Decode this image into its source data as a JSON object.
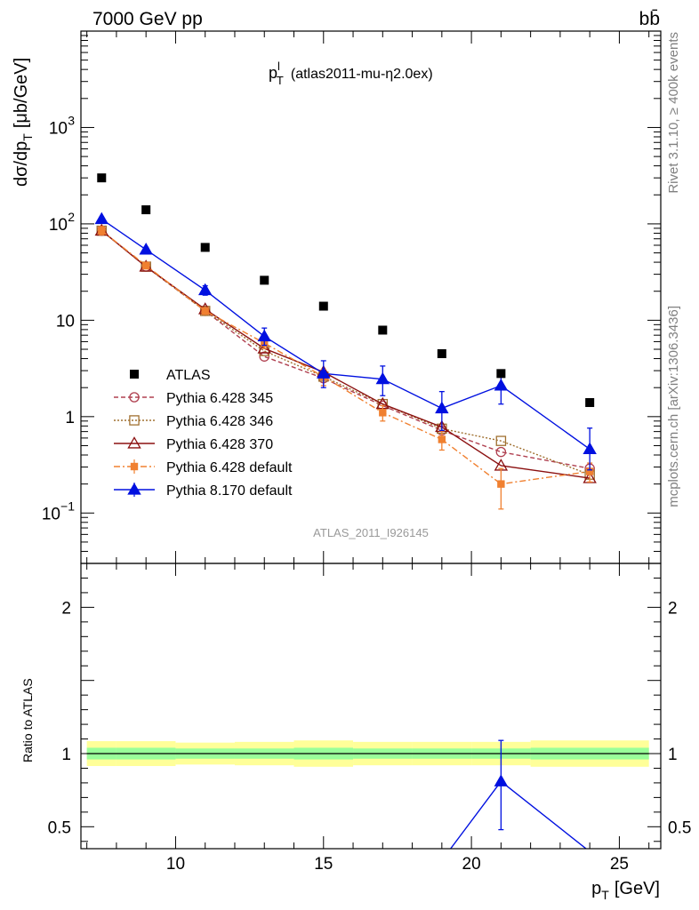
{
  "header": {
    "energy_label": "7000 GeV pp",
    "process_label": "bb̄",
    "rivet_label": "Rivet 3.1.10, ≥ 400k events",
    "mcplots_label": "mcplots.cern.ch [arXiv:1306.3436]"
  },
  "chart_data": {
    "type": "scatter",
    "title": "p",
    "title_sup": "l",
    "title_sub": "T",
    "title_extra": "(atlas2011-mu-η2.0ex)",
    "analysis_label": "ATLAS_2011_I926145",
    "ylabel_main": "dσ/dp",
    "ylabel_sub": "T",
    "ylabel_unit": "[μb/GeV]",
    "ylabel_ratio": "Ratio to ATLAS",
    "xlabel_main": "p",
    "xlabel_sub": "T",
    "xlabel_unit": "[GeV]",
    "xlim": [
      6.8,
      26.4
    ],
    "ylim_main": [
      0.03,
      10000
    ],
    "ylim_ratio": [
      0.35,
      2.3
    ],
    "y_scale": "log",
    "x_ticks": [
      {
        "value": 10,
        "label": "10"
      },
      {
        "value": 15,
        "label": "15"
      },
      {
        "value": 20,
        "label": "20"
      },
      {
        "value": 25,
        "label": "25"
      }
    ],
    "y_ticks_main": [
      {
        "value": 0.1,
        "base": "10",
        "exp": "−1"
      },
      {
        "value": 1,
        "base": "1",
        "exp": ""
      },
      {
        "value": 10,
        "base": "10",
        "exp": ""
      },
      {
        "value": 100,
        "base": "10",
        "exp": "2"
      },
      {
        "value": 1000,
        "base": "10",
        "exp": "3"
      }
    ],
    "y_ticks_ratio": [
      {
        "value": 0.5,
        "label": "0.5"
      },
      {
        "value": 1,
        "label": "1"
      },
      {
        "value": 2,
        "label": "2"
      }
    ],
    "legend_position": "middle-left",
    "data": {
      "name": "ATLAS",
      "color": "#000000",
      "x": [
        7.5,
        9,
        11,
        13,
        15,
        17,
        19,
        21,
        24
      ],
      "y": [
        300,
        140,
        57,
        26,
        14,
        7.9,
        4.5,
        2.8,
        1.4
      ],
      "bins": [
        [
          7,
          8
        ],
        [
          8,
          10
        ],
        [
          10,
          12
        ],
        [
          12,
          14
        ],
        [
          14,
          16
        ],
        [
          16,
          18
        ],
        [
          18,
          20
        ],
        [
          20,
          22
        ],
        [
          22,
          26
        ]
      ],
      "band_inner": [
        0.96,
        0.96,
        0.965,
        0.965,
        0.96,
        0.965,
        0.965,
        0.965,
        0.96
      ],
      "band_outer": [
        0.915,
        0.915,
        0.925,
        0.92,
        0.91,
        0.92,
        0.92,
        0.92,
        0.91
      ]
    },
    "series": [
      {
        "name": "Pythia 6.428 345",
        "color": "#b04050",
        "marker": "circle-open",
        "dash": "5,3",
        "x": [
          7.5,
          9,
          11,
          13,
          15,
          17,
          19,
          21,
          24
        ],
        "y": [
          85,
          36,
          12.5,
          4.2,
          2.5,
          1.3,
          0.72,
          0.43,
          0.29
        ]
      },
      {
        "name": "Pythia 6.428 346",
        "color": "#a07030",
        "marker": "square-open",
        "dash": "2,2",
        "x": [
          7.5,
          9,
          11,
          13,
          15,
          17,
          19,
          21,
          24
        ],
        "y": [
          85,
          36,
          12.5,
          4.8,
          2.6,
          1.35,
          0.75,
          0.56,
          0.25
        ]
      },
      {
        "name": "Pythia 6.428 370",
        "color": "#8b1010",
        "marker": "triangle-open",
        "dash": "",
        "x": [
          7.5,
          9,
          11,
          13,
          15,
          17,
          19,
          21,
          24
        ],
        "y": [
          85,
          36,
          13,
          5.1,
          2.9,
          1.35,
          0.78,
          0.31,
          0.23
        ]
      },
      {
        "name": "Pythia 6.428 default",
        "color": "#f08030",
        "marker": "square-filled",
        "dash": "7,3,2,3",
        "x": [
          7.5,
          9,
          11,
          13,
          15,
          17,
          19,
          21,
          24
        ],
        "y": [
          85,
          37,
          12.5,
          5.8,
          2.6,
          1.1,
          0.58,
          0.2,
          0.27
        ],
        "err": [
          [
            8,
            9
          ],
          [
            3,
            3
          ],
          [
            1,
            1
          ],
          [
            0.7,
            0.7
          ],
          [
            0.5,
            0.5
          ],
          [
            0.2,
            0.2
          ],
          [
            0.13,
            0.13
          ],
          [
            0.09,
            0.09
          ],
          [
            0.06,
            0.06
          ]
        ]
      },
      {
        "name": "Pythia 8.170 default",
        "color": "#0010e0",
        "marker": "triangle-filled",
        "dash": "",
        "x": [
          7.5,
          9,
          11,
          13,
          15,
          17,
          19,
          21,
          24
        ],
        "y": [
          112,
          54,
          20.5,
          6.8,
          2.8,
          2.45,
          1.22,
          2.1,
          0.46
        ],
        "err": [
          [
            5,
            5
          ],
          [
            3,
            3
          ],
          [
            2.3,
            2.3
          ],
          [
            1.3,
            1.5
          ],
          [
            0.8,
            1.0
          ],
          [
            0.8,
            0.9
          ],
          [
            0.5,
            0.6
          ],
          [
            0.75,
            0.9
          ],
          [
            0.18,
            0.3
          ]
        ]
      }
    ],
    "ratio_series": [
      {
        "name": "Pythia 8.170 default",
        "color": "#0010e0",
        "x": [
          19,
          21,
          24
        ],
        "y": [
          0.27,
          0.81,
          0.33
        ],
        "err": [
          [
            0,
            0
          ],
          [
            0.33,
            0.28
          ],
          [
            0,
            0
          ]
        ]
      }
    ]
  }
}
